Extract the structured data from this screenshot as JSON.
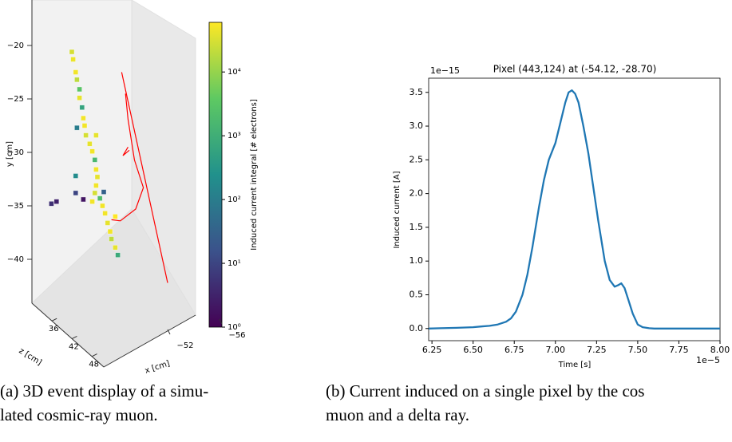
{
  "chart_data": [
    {
      "type": "scatter3d",
      "caption": [
        "(a) 3D event display of a simu-",
        "lated cosmic-ray muon."
      ],
      "xlabel": "x [cm]",
      "ylabel": "y [cm]",
      "zlabel": "z [cm]",
      "xticks": [
        {
          "value": -52,
          "label": "−52"
        },
        {
          "value": -56,
          "label": "−56"
        }
      ],
      "yticks": [
        {
          "value": -20,
          "label": "−20"
        },
        {
          "value": -25,
          "label": "−25"
        },
        {
          "value": -30,
          "label": "−30"
        },
        {
          "value": -35,
          "label": "−35"
        },
        {
          "value": -40,
          "label": "−40"
        }
      ],
      "zticks": [
        36,
        42,
        48
      ],
      "pixels": {
        "x": [
          -50.0,
          -50.1,
          -50.3,
          -50.4,
          -50.6,
          -50.6,
          -50.8,
          -50.9,
          -51.0,
          -51.1,
          -51.4,
          -51.6,
          -51.8,
          -51.9,
          -52.0,
          -51.9,
          -51.8,
          -51.6,
          -52.2,
          -52.5,
          -52.4,
          -52.6,
          -52.8,
          -53.0,
          -53.1,
          -53.4,
          -53.6,
          -48.4,
          -48.8,
          -50.3,
          -50.9,
          -50.3,
          -51.9,
          -50.4,
          -53.4
        ],
        "y": [
          -20.6,
          -21.3,
          -22.5,
          -23.2,
          -24.1,
          -24.9,
          -25.8,
          -26.8,
          -27.5,
          -28.4,
          -29.2,
          -29.9,
          -30.7,
          -31.6,
          -32.3,
          -33.1,
          -33.8,
          -34.6,
          -34.3,
          -33.7,
          -35.0,
          -35.7,
          -36.6,
          -37.4,
          -38.1,
          -38.9,
          -39.6,
          -34.8,
          -34.6,
          -33.8,
          -34.4,
          -32.2,
          -28.4,
          -27.7,
          -36.0
        ],
        "values": [
          30000,
          45000,
          50000,
          20000,
          3000,
          40000,
          600,
          50000,
          50000,
          30000,
          40000,
          50000,
          1500,
          50000,
          40000,
          50000,
          30000,
          50000,
          2000,
          30,
          50000,
          50000,
          40000,
          50000,
          20000,
          40000,
          800,
          5,
          3,
          10,
          2,
          200,
          40000,
          100,
          60000
        ]
      },
      "track": {
        "color": "#ff0000",
        "x": [
          -53.9,
          -57.5,
          null,
          -53.1,
          -53.8,
          -55.0,
          -55.6,
          -54.9,
          -54.4,
          -54.2,
          null,
          -54.5,
          -54.0,
          -54.4
        ],
        "y": [
          -22.5,
          -42.2,
          null,
          -36.3,
          -36.4,
          -35.3,
          -33.3,
          -30.7,
          -26.9,
          -24.5,
          null,
          -29.8,
          -30.3,
          -29.5
        ]
      },
      "colorbar": {
        "label": "Induced current integral [# electrons]",
        "lim": [
          1,
          60000
        ],
        "log": true,
        "colormap": "viridis",
        "ticks": [
          {
            "value": 1,
            "label": "10⁰"
          },
          {
            "value": 10,
            "label": "10¹"
          },
          {
            "value": 100,
            "label": "10²"
          },
          {
            "value": 1000,
            "label": "10³"
          },
          {
            "value": 10000,
            "label": "10⁴"
          }
        ]
      }
    },
    {
      "type": "line",
      "title": "Pixel (443,124) at (-54.12, -28.70)",
      "caption": [
        "(b) Current induced on a single pixel by the cos",
        "muon and a delta ray."
      ],
      "xlabel": "Time [s]",
      "ylabel": "Induced current [A]",
      "x_offset_label": "1e−5",
      "y_offset_label": "1e−15",
      "x": [
        6.23,
        6.3,
        6.4,
        6.5,
        6.55,
        6.6,
        6.65,
        6.7,
        6.73,
        6.76,
        6.8,
        6.83,
        6.86,
        6.9,
        6.93,
        6.96,
        7.0,
        7.03,
        7.06,
        7.08,
        7.1,
        7.12,
        7.14,
        7.17,
        7.2,
        7.23,
        7.26,
        7.3,
        7.33,
        7.36,
        7.38,
        7.4,
        7.42,
        7.44,
        7.47,
        7.5,
        7.53,
        7.57,
        7.6,
        7.7,
        7.8,
        7.9,
        8.0
      ],
      "values": [
        0,
        0.005,
        0.01,
        0.02,
        0.03,
        0.04,
        0.06,
        0.1,
        0.15,
        0.25,
        0.5,
        0.8,
        1.2,
        1.8,
        2.2,
        2.5,
        2.75,
        3.05,
        3.35,
        3.5,
        3.53,
        3.48,
        3.35,
        3.0,
        2.6,
        2.1,
        1.6,
        1.0,
        0.72,
        0.62,
        0.64,
        0.67,
        0.6,
        0.45,
        0.22,
        0.06,
        0.02,
        0.005,
        0,
        0,
        0,
        0,
        0
      ],
      "color": "#1f77b4",
      "xlim": [
        6.23,
        8.0
      ],
      "ylim": [
        -0.18,
        3.71
      ],
      "xticks": [
        {
          "value": 6.25,
          "label": "6.25"
        },
        {
          "value": 6.5,
          "label": "6.50"
        },
        {
          "value": 6.75,
          "label": "6.75"
        },
        {
          "value": 7,
          "label": "7.00"
        },
        {
          "value": 7.25,
          "label": "7.25"
        },
        {
          "value": 7.5,
          "label": "7.50"
        },
        {
          "value": 7.75,
          "label": "7.75"
        },
        {
          "value": 8,
          "label": "8.00"
        }
      ],
      "yticks": [
        {
          "value": 0,
          "label": "0.0"
        },
        0.5,
        {
          "value": 1,
          "label": "1.0"
        },
        1.5,
        {
          "value": 2,
          "label": "2.0"
        },
        2.5,
        {
          "value": 3,
          "label": "3.0"
        },
        3.5
      ]
    }
  ]
}
